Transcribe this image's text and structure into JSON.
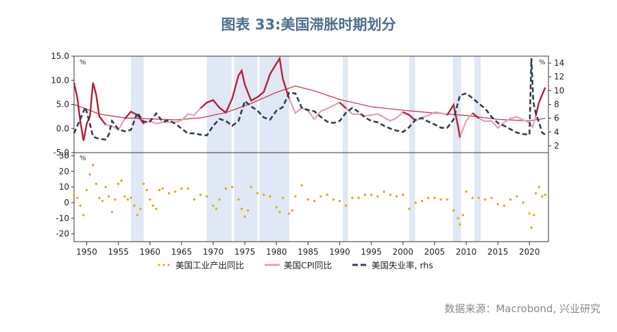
{
  "page": {
    "title": "图表 33:美国滞胀时期划分",
    "source": "数据来源：Macrobond, 兴业研究"
  },
  "colors": {
    "cpi_dark": "#b5213d",
    "cpi_light": "#e3a1ad",
    "cpi_trend": "#c8394f",
    "unemployment": "#2f3d52",
    "industrial": "#e6a817",
    "shading": "#dfe8f4"
  },
  "chart_data": [
    {
      "type": "line",
      "panel": "top",
      "left_axis": {
        "unit": "%",
        "ylim": [
          -5,
          15
        ],
        "ticks": [
          "15.0",
          "10.0",
          "5.0",
          "0.0",
          "-5.0"
        ]
      },
      "right_axis": {
        "unit": "%",
        "ylim": [
          1,
          15
        ],
        "ticks": [
          "14",
          "12",
          "10",
          "8",
          "6",
          "4",
          "2"
        ]
      },
      "x_ticks": [
        "1950",
        "1955",
        "1960",
        "1965",
        "1970",
        "1975",
        "1980",
        "1985",
        "1990",
        "1995",
        "2000",
        "2005",
        "2010",
        "2015",
        "2020"
      ],
      "xlim": [
        1948,
        2023
      ],
      "shaded_periods": [
        [
          1957,
          1959
        ],
        [
          1969,
          1972.9
        ],
        [
          1973.3,
          1977
        ],
        [
          1977.3,
          1982
        ],
        [
          1990.5,
          1991.3
        ],
        [
          2001,
          2001.9
        ],
        [
          2007.9,
          2009.2
        ],
        [
          2011.3,
          2012.3
        ]
      ],
      "series": [
        {
          "name": "美国CPI同比",
          "axis": "left",
          "x": [
            1948,
            1948.5,
            1949,
            1949.5,
            1950,
            1950.5,
            1951,
            1951.5,
            1952,
            1953,
            1954,
            1955,
            1956,
            1957,
            1958,
            1959,
            1960,
            1961,
            1962,
            1963,
            1964,
            1965,
            1966,
            1967,
            1968,
            1969,
            1970,
            1971,
            1972,
            1973,
            1974,
            1974.5,
            1975,
            1976,
            1977,
            1978,
            1979,
            1980,
            1980.5,
            1981,
            1982,
            1983,
            1984,
            1985,
            1986,
            1987,
            1988,
            1989,
            1990,
            1991,
            1992,
            1993,
            1994,
            1995,
            1996,
            1997,
            1998,
            1999,
            2000,
            2001,
            2002,
            2003,
            2004,
            2005,
            2006,
            2007,
            2008,
            2008.7,
            2009,
            2010,
            2011,
            2012,
            2013,
            2014,
            2015,
            2016,
            2017,
            2018,
            2019,
            2020,
            2020.5,
            2021,
            2021.5,
            2022,
            2022.5
          ],
          "values": [
            9.5,
            6.5,
            1.5,
            -2.5,
            1.0,
            2.5,
            9.5,
            7.0,
            2.5,
            0.8,
            0.5,
            -0.3,
            2.0,
            3.5,
            2.8,
            1.0,
            1.6,
            1.0,
            1.3,
            1.3,
            1.3,
            1.7,
            3.0,
            2.8,
            4.2,
            5.4,
            5.9,
            4.3,
            3.3,
            6.2,
            11.0,
            12.0,
            9.1,
            5.8,
            6.5,
            7.6,
            11.3,
            13.5,
            14.5,
            10.3,
            6.2,
            3.2,
            4.3,
            3.6,
            1.9,
            3.6,
            4.1,
            4.8,
            5.4,
            4.2,
            3.0,
            3.0,
            2.6,
            2.8,
            3.0,
            2.3,
            1.6,
            2.2,
            3.4,
            2.8,
            1.6,
            2.3,
            2.7,
            3.4,
            3.2,
            2.8,
            4.9,
            0.5,
            -1.8,
            1.6,
            3.2,
            2.1,
            1.5,
            1.6,
            0.1,
            1.3,
            2.1,
            2.4,
            1.8,
            1.2,
            0.3,
            2.6,
            5.4,
            7.0,
            8.5
          ]
        },
        {
          "name": "美国失业率",
          "axis": "right",
          "dashed": true,
          "x": [
            1948,
            1949,
            1949.8,
            1950.5,
            1951,
            1952,
            1953,
            1953.5,
            1954,
            1955,
            1956,
            1957,
            1958,
            1959,
            1960,
            1961,
            1962,
            1963,
            1964,
            1965,
            1966,
            1967,
            1968,
            1969,
            1970,
            1971,
            1972,
            1973,
            1974,
            1975,
            1976,
            1977,
            1978,
            1979,
            1980,
            1981,
            1982,
            1983,
            1984,
            1985,
            1986,
            1987,
            1988,
            1989,
            1990,
            1991,
            1992,
            1993,
            1994,
            1995,
            1996,
            1997,
            1998,
            1999,
            2000,
            2001,
            2002,
            2003,
            2004,
            2005,
            2006,
            2007,
            2008,
            2009,
            2010,
            2011,
            2012,
            2013,
            2014,
            2015,
            2016,
            2017,
            2018,
            2019,
            2020,
            2020.3,
            2020.6,
            2021,
            2021.5,
            2022,
            2022.5
          ],
          "values": [
            3.8,
            5.9,
            7.6,
            5.2,
            3.3,
            3.0,
            2.9,
            3.6,
            5.6,
            4.4,
            4.1,
            4.3,
            6.8,
            5.5,
            5.5,
            6.7,
            5.5,
            5.7,
            5.2,
            4.5,
            3.8,
            3.8,
            3.6,
            3.5,
            4.9,
            5.9,
            5.6,
            4.9,
            5.6,
            8.5,
            7.7,
            7.1,
            6.1,
            5.8,
            7.1,
            7.6,
            9.7,
            9.6,
            7.5,
            7.2,
            7.0,
            6.2,
            5.5,
            5.3,
            5.6,
            6.8,
            7.5,
            6.9,
            6.1,
            5.6,
            5.4,
            4.9,
            4.5,
            4.2,
            4.0,
            4.7,
            5.8,
            6.0,
            5.5,
            5.1,
            4.6,
            4.6,
            5.8,
            9.3,
            9.6,
            8.9,
            8.1,
            7.4,
            6.2,
            5.3,
            4.9,
            4.4,
            3.9,
            3.7,
            3.6,
            14.7,
            8.4,
            6.7,
            5.4,
            3.9,
            3.6
          ]
        },
        {
          "name": "",
          "axis": "left",
          "x": [
            1948,
            1952,
            1956,
            1960,
            1964,
            1968,
            1972,
            1976,
            1980,
            1983,
            1986,
            1990,
            1995,
            2000,
            2005,
            2010,
            2015,
            2020,
            2022.5
          ],
          "values": [
            5.0,
            3.0,
            2.2,
            2.0,
            1.8,
            2.2,
            3.3,
            5.2,
            7.5,
            8.8,
            7.8,
            6.0,
            4.5,
            3.8,
            3.2,
            2.7,
            1.9,
            1.6,
            2.1
          ]
        }
      ]
    },
    {
      "type": "scatter",
      "panel": "bottom",
      "left_axis": {
        "unit": "%",
        "ylim": [
          -25,
          32
        ],
        "ticks": [
          "30",
          "20",
          "10",
          "0",
          "-10",
          "-20"
        ]
      },
      "xlim": [
        1948,
        2023
      ],
      "series": [
        {
          "name": "美国工业产出同比",
          "x": [
            1948,
            1948.5,
            1949,
            1949.5,
            1950,
            1950.5,
            1951,
            1951.5,
            1952,
            1952.5,
            1953,
            1953.5,
            1954,
            1954.5,
            1955,
            1955.5,
            1956,
            1956.5,
            1957,
            1957.5,
            1958,
            1958.5,
            1959,
            1959.5,
            1960,
            1960.5,
            1961,
            1961.5,
            1962,
            1963,
            1964,
            1965,
            1966,
            1967,
            1968,
            1969,
            1970,
            1970.5,
            1971,
            1972,
            1973,
            1974,
            1974.5,
            1975,
            1975.5,
            1976,
            1977,
            1978,
            1979,
            1980,
            1980.5,
            1981,
            1982,
            1982.5,
            1983,
            1984,
            1985,
            1986,
            1987,
            1988,
            1989,
            1990,
            1991,
            1992,
            1993,
            1994,
            1995,
            1996,
            1997,
            1998,
            1999,
            2000,
            2001,
            2002,
            2003,
            2004,
            2005,
            2006,
            2007,
            2008,
            2008.7,
            2009,
            2009.5,
            2010,
            2011,
            2012,
            2013,
            2014,
            2015,
            2016,
            2017,
            2018,
            2019,
            2020,
            2020.3,
            2020.7,
            2021,
            2021.5,
            2022,
            2022.5
          ],
          "values": [
            5,
            3,
            -2,
            -8,
            8,
            18,
            24,
            12,
            3,
            1,
            10,
            4,
            -6,
            2,
            12,
            14,
            4,
            2,
            3,
            -2,
            -8,
            -4,
            12,
            8,
            2,
            -2,
            -4,
            8,
            9,
            6,
            7,
            9,
            9,
            2,
            5,
            4,
            -2,
            -4,
            2,
            9,
            10,
            2,
            -4,
            -9,
            -5,
            10,
            6,
            5,
            4,
            -3,
            -6,
            3,
            -7,
            -5,
            4,
            11,
            2,
            1,
            4,
            5,
            2,
            1,
            -2,
            3,
            3,
            5,
            5,
            4,
            7,
            5,
            4,
            5,
            -4,
            0,
            1,
            3,
            3,
            2,
            2,
            -5,
            -10,
            -14,
            -8,
            7,
            3,
            3,
            2,
            3,
            -1,
            -2,
            2,
            4,
            0,
            -7,
            -16,
            -8,
            6,
            10,
            4,
            5
          ]
        }
      ]
    }
  ],
  "legend": {
    "items": [
      {
        "label": "美国工业产出同比",
        "style": "dotted"
      },
      {
        "label": "美国CPI同比",
        "style": "solid"
      },
      {
        "label": "美国失业率, rhs",
        "style": "dashed"
      }
    ]
  }
}
